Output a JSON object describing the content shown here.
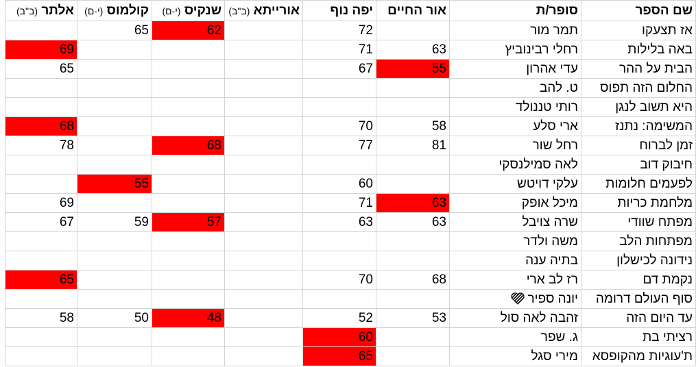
{
  "highlight_color": "#ff0000",
  "headers": [
    {
      "name": "שם הספר",
      "sub": ""
    },
    {
      "name": "סופר/ת",
      "sub": ""
    },
    {
      "name": "אור החיים",
      "sub": ""
    },
    {
      "name": "יפה נוף",
      "sub": ""
    },
    {
      "name": "אורייתא",
      "sub": "(ב\"ב)"
    },
    {
      "name": "שנקיס",
      "sub": "(י-ם)"
    },
    {
      "name": "קולמוס",
      "sub": "(י-ם)"
    },
    {
      "name": "אלתר",
      "sub": "(ב\"ב)"
    }
  ],
  "rows": [
    {
      "title": "אז תצעקו",
      "author": "תמר מור",
      "scores": [
        "",
        "72",
        "",
        "62",
        "65",
        ""
      ],
      "highlight": [
        3
      ]
    },
    {
      "title": "באה בלילות",
      "author": "רחלי רבינוביץ",
      "scores": [
        "63",
        "71",
        "",
        "",
        "",
        "69"
      ],
      "highlight": [
        5
      ]
    },
    {
      "title": "הבית על ההר",
      "author": "עדי אהרון",
      "scores": [
        "55",
        "67",
        "",
        "",
        "",
        "65"
      ],
      "highlight": [
        0
      ]
    },
    {
      "title": "החלום הזה תפוס",
      "author": "ט. להב",
      "scores": [
        "",
        "",
        "",
        "",
        "",
        ""
      ],
      "highlight": []
    },
    {
      "title": "היא תשוב לנגן",
      "author": "רותי טננולד",
      "scores": [
        "",
        "",
        "",
        "",
        "",
        ""
      ],
      "highlight": []
    },
    {
      "title": "המשימה: נתנז",
      "author": "ארי סלע",
      "scores": [
        "58",
        "70",
        "",
        "",
        "",
        "68"
      ],
      "highlight": [
        5
      ]
    },
    {
      "title": "זמן לברוח",
      "author": "רחל שור",
      "scores": [
        "81",
        "77",
        "",
        "68",
        "",
        "78"
      ],
      "highlight": [
        3
      ]
    },
    {
      "title": "חיבוק דוב",
      "author": "לאה סמילנסקי",
      "scores": [
        "",
        "",
        "",
        "",
        "",
        ""
      ],
      "highlight": []
    },
    {
      "title": "לפעמים חלומות",
      "author": "עלקי דויטש",
      "scores": [
        "",
        "60",
        "",
        "",
        "55",
        ""
      ],
      "highlight": [
        4
      ]
    },
    {
      "title": "מלחמת כריות",
      "author": "מיכל אופק",
      "scores": [
        "63",
        "71",
        "",
        "",
        "",
        "69"
      ],
      "highlight": [
        0
      ]
    },
    {
      "title": "מפתח שוודי",
      "author": "שרה צויבל",
      "scores": [
        "63",
        "63",
        "",
        "57",
        "59",
        "67"
      ],
      "highlight": [
        3
      ]
    },
    {
      "title": "מפתחות הלב",
      "author": "משה ולדר",
      "scores": [
        "",
        "",
        "",
        "",
        "",
        ""
      ],
      "highlight": []
    },
    {
      "title": "נידונה לכישלון",
      "author": "בתיה ענה",
      "scores": [
        "",
        "",
        "",
        "",
        "",
        ""
      ],
      "highlight": []
    },
    {
      "title": "נקמת דם",
      "author": "רז לב ארי",
      "scores": [
        "68",
        "70",
        "",
        "",
        "",
        "65"
      ],
      "highlight": [
        5
      ]
    },
    {
      "title": "סוף העולם דרומה",
      "author": "יונה ספיר",
      "author_icon": "striped-heart-icon",
      "scores": [
        "",
        "",
        "",
        "",
        "",
        ""
      ],
      "highlight": []
    },
    {
      "title": "עד היום הזה",
      "author": "זהבה לאה סול",
      "scores": [
        "53",
        "52",
        "",
        "48",
        "50",
        "58"
      ],
      "highlight": [
        3
      ]
    },
    {
      "title": "רציתי בת",
      "author": "ג. שפר",
      "scores": [
        "",
        "60",
        "",
        "",
        "",
        ""
      ],
      "highlight": [
        1
      ]
    },
    {
      "title": "ת'עוגיות מהקופסא",
      "author": "מירי סגל",
      "scores": [
        "",
        "65",
        "",
        "",
        "",
        ""
      ],
      "highlight": [
        1
      ]
    }
  ]
}
